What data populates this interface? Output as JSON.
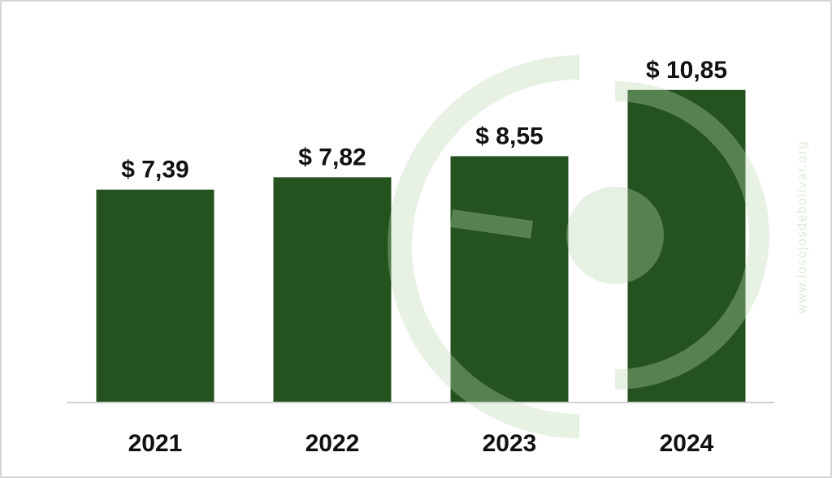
{
  "chart_data": {
    "type": "bar",
    "categories": [
      "2021",
      "2022",
      "2023",
      "2024"
    ],
    "values": [
      7.39,
      7.82,
      8.55,
      10.85
    ],
    "value_labels": [
      "$ 7,39",
      "$ 7,82",
      "$ 8,55",
      "$ 10,85"
    ],
    "title": "",
    "xlabel": "",
    "ylabel": "",
    "ylim": [
      0,
      12
    ],
    "grid": false,
    "legend": "none",
    "bar_color": "#24531f"
  },
  "watermark": {
    "text": "www.losojosdebolivar.org",
    "color": "#dcebd8"
  }
}
